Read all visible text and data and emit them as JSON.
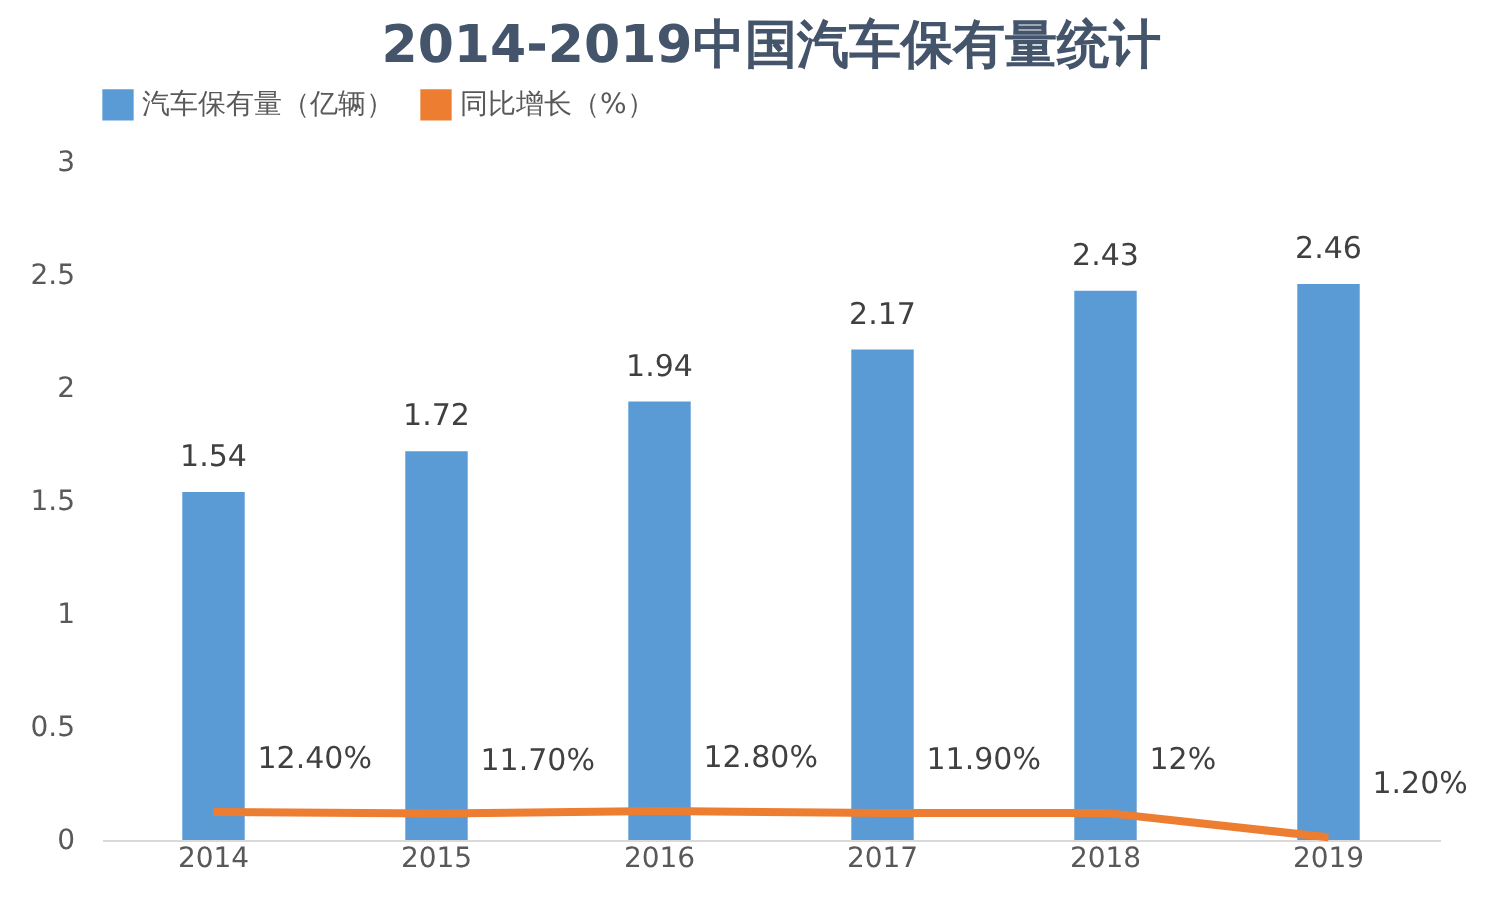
{
  "chart_data": {
    "type": "bar",
    "title": "2014-2019中国汽车保有量统计",
    "categories": [
      "2014",
      "2015",
      "2016",
      "2017",
      "2018",
      "2019"
    ],
    "series": [
      {
        "name": "汽车保有量（亿辆）",
        "color": "#5b9bd5",
        "values": [
          1.54,
          1.72,
          1.94,
          2.17,
          2.43,
          2.46
        ],
        "value_labels": [
          "1.54",
          "1.72",
          "1.94",
          "2.17",
          "2.43",
          "2.46"
        ]
      },
      {
        "name": "同比增长（%）",
        "type": "line",
        "color": "#ed7d31",
        "values": [
          0.124,
          0.117,
          0.128,
          0.119,
          0.12,
          0.012
        ],
        "value_labels": [
          "12.40%",
          "11.70%",
          "12.80%",
          "11.90%",
          "12%",
          "1.20%"
        ]
      }
    ],
    "ylim": [
      0,
      3
    ],
    "yticks": [
      0,
      0.5,
      1,
      1.5,
      2,
      2.5,
      3
    ],
    "legend": "top",
    "grid": false,
    "marker": "none"
  }
}
